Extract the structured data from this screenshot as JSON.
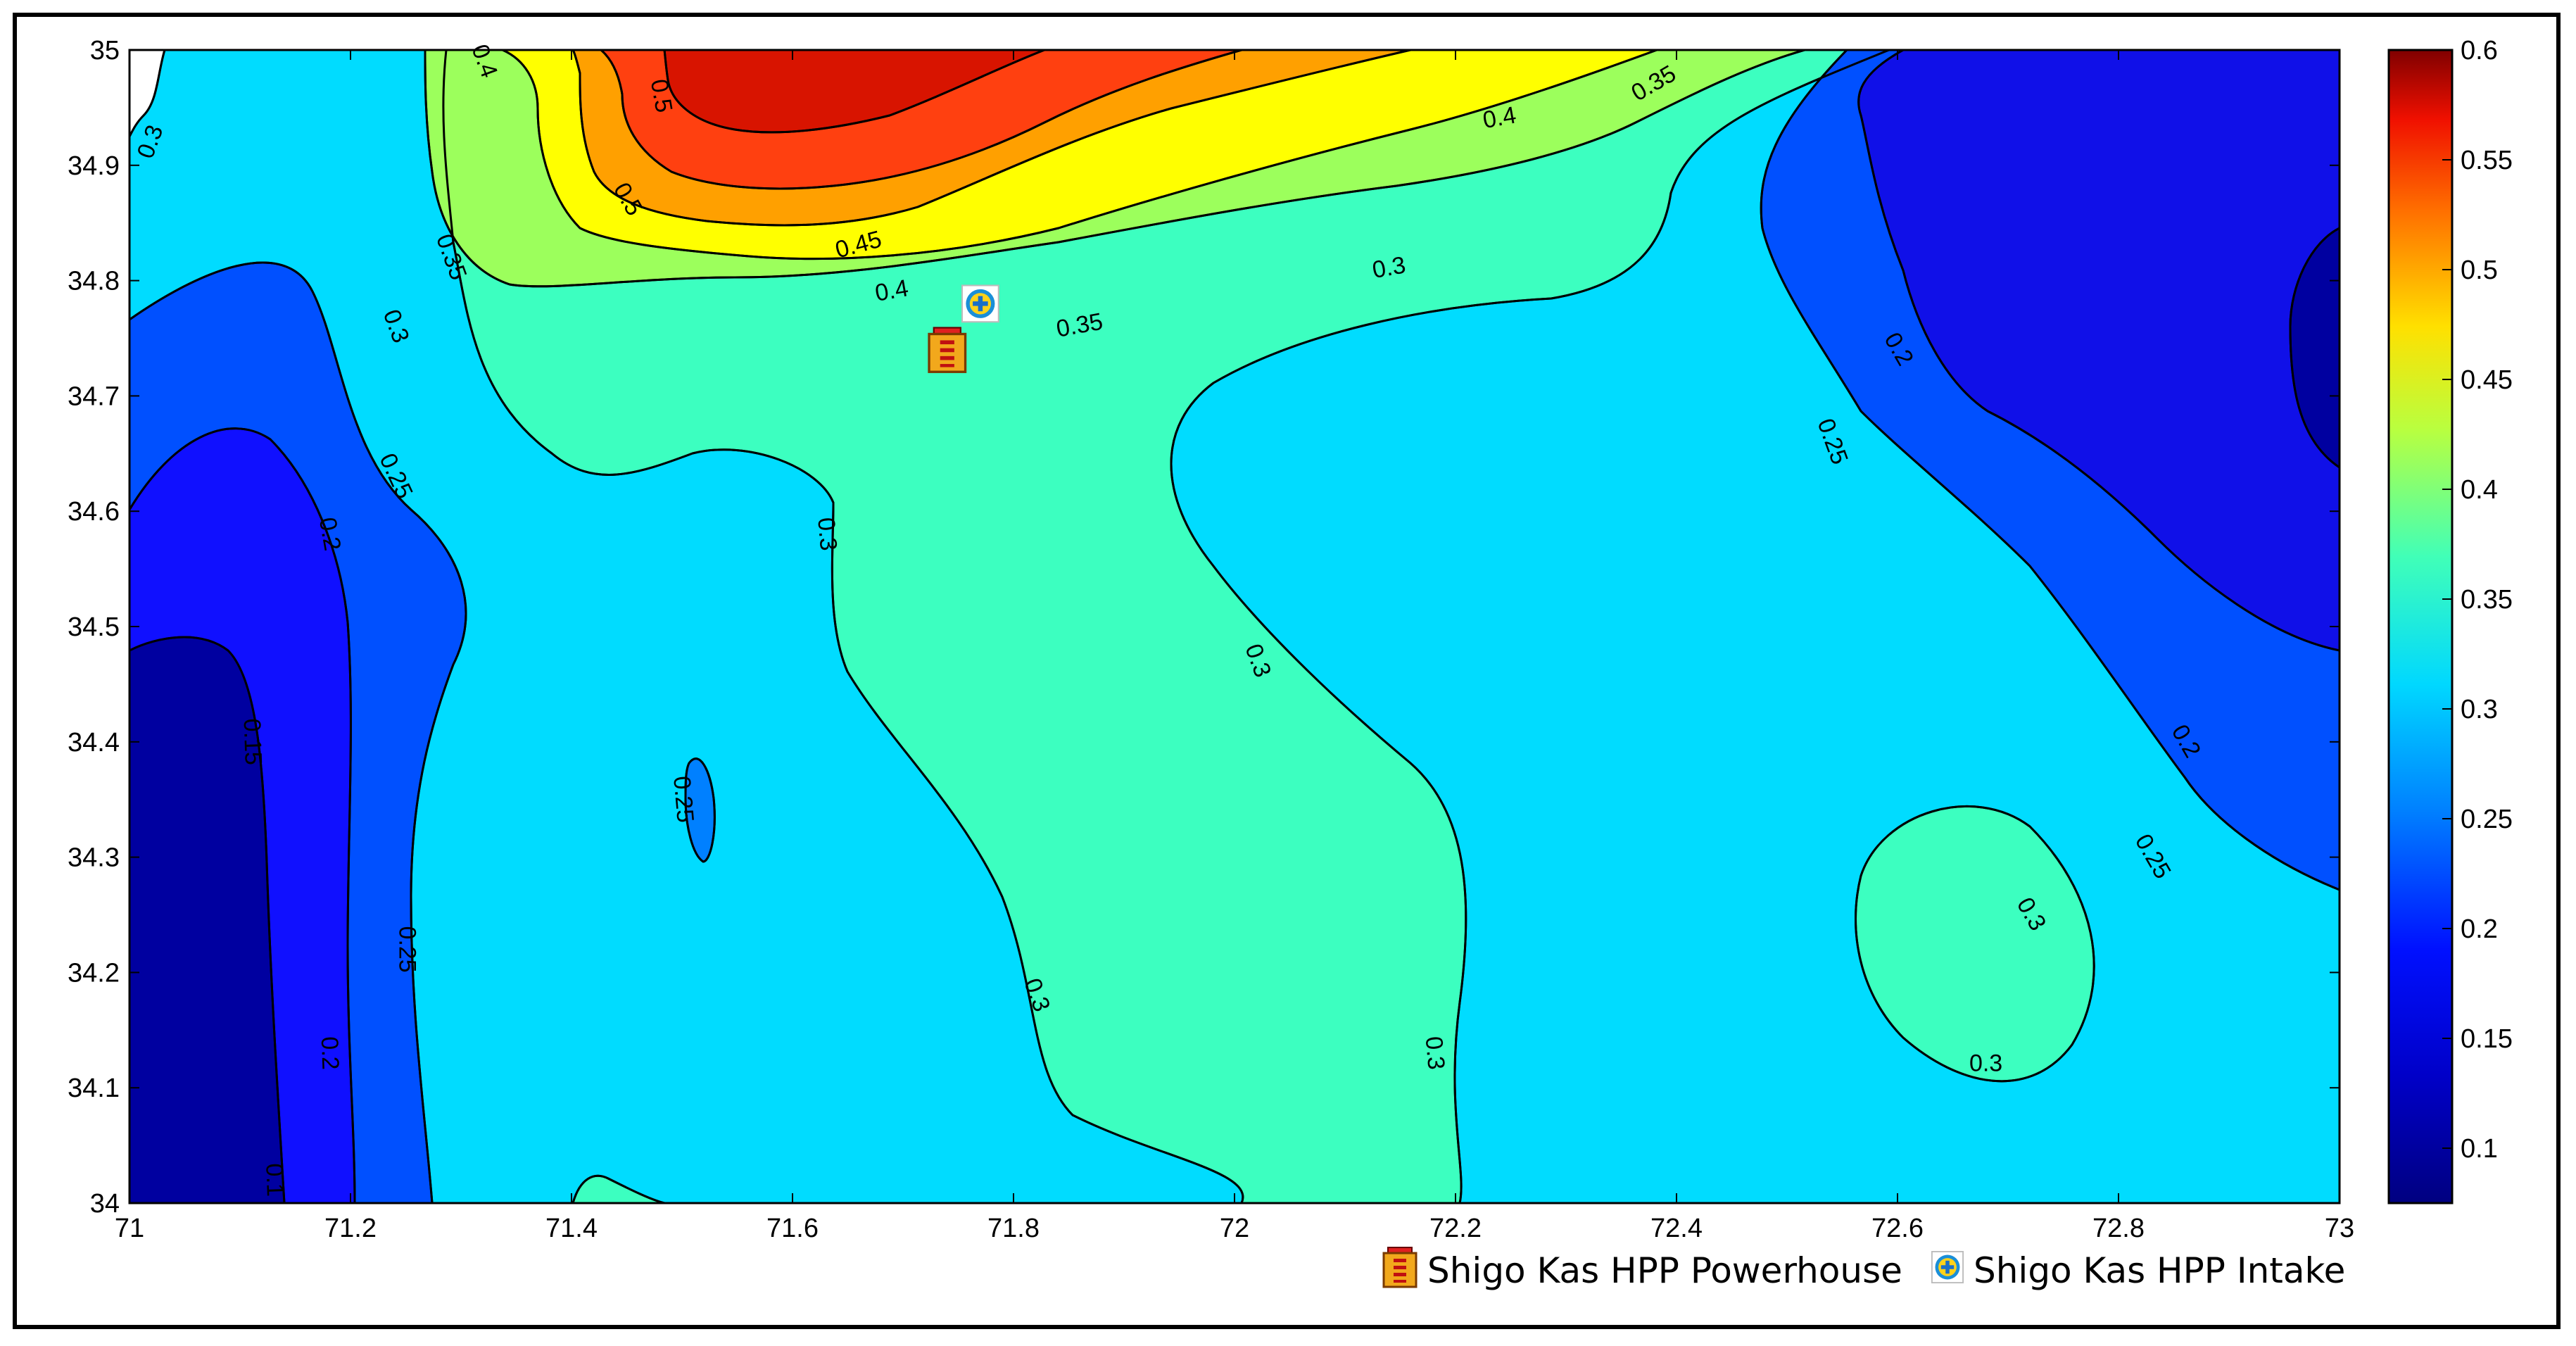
{
  "chart_data": {
    "type": "contour",
    "title": "",
    "xlabel": "",
    "ylabel": "",
    "xlim": [
      71,
      73
    ],
    "ylim": [
      34,
      35
    ],
    "x_ticks": [
      "71",
      "71.2",
      "71.4",
      "71.6",
      "71.8",
      "72",
      "72.2",
      "72.4",
      "72.6",
      "72.8",
      "73"
    ],
    "y_ticks": [
      "34",
      "34.1",
      "34.2",
      "34.3",
      "34.4",
      "34.5",
      "34.6",
      "34.7",
      "34.8",
      "34.9",
      "35"
    ],
    "colorbar": {
      "range": [
        0.075,
        0.6
      ],
      "ticks": [
        "0.1",
        "0.15",
        "0.2",
        "0.25",
        "0.3",
        "0.35",
        "0.4",
        "0.45",
        "0.5",
        "0.55",
        "0.6"
      ],
      "colormap": "jet"
    },
    "levels": [
      0.1,
      0.15,
      0.2,
      0.25,
      0.3,
      0.35,
      0.4,
      0.45,
      0.5,
      0.55
    ],
    "contour_labels": [
      {
        "text": "0.3",
        "x": 71.02,
        "y": 34.92,
        "angle": -70
      },
      {
        "text": "0.35",
        "x": 71.29,
        "y": 34.82,
        "angle": 70
      },
      {
        "text": "0.3",
        "x": 71.24,
        "y": 34.76,
        "angle": 70
      },
      {
        "text": "0.25",
        "x": 71.24,
        "y": 34.63,
        "angle": 65
      },
      {
        "text": "0.2",
        "x": 71.18,
        "y": 34.58,
        "angle": 80
      },
      {
        "text": "0.15",
        "x": 71.11,
        "y": 34.4,
        "angle": 88
      },
      {
        "text": "0.25",
        "x": 71.25,
        "y": 34.22,
        "angle": 90
      },
      {
        "text": "0.2",
        "x": 71.18,
        "y": 34.13,
        "angle": 88
      },
      {
        "text": "0.1",
        "x": 71.13,
        "y": 34.02,
        "angle": 88
      },
      {
        "text": "0.5",
        "x": 71.48,
        "y": 34.96,
        "angle": 80
      },
      {
        "text": "0.5",
        "x": 71.45,
        "y": 34.87,
        "angle": 60
      },
      {
        "text": "0.4",
        "x": 71.32,
        "y": 34.99,
        "angle": 70
      },
      {
        "text": "0.45",
        "x": 71.66,
        "y": 34.83,
        "angle": -15
      },
      {
        "text": "0.4",
        "x": 71.69,
        "y": 34.79,
        "angle": -10
      },
      {
        "text": "0.35",
        "x": 71.86,
        "y": 34.76,
        "angle": -10
      },
      {
        "text": "0.4",
        "x": 72.24,
        "y": 34.94,
        "angle": -10
      },
      {
        "text": "0.35",
        "x": 72.38,
        "y": 34.97,
        "angle": -30
      },
      {
        "text": "0.3",
        "x": 72.14,
        "y": 34.81,
        "angle": -10
      },
      {
        "text": "0.3",
        "x": 71.63,
        "y": 34.58,
        "angle": 85
      },
      {
        "text": "0.25",
        "x": 71.5,
        "y": 34.35,
        "angle": 85
      },
      {
        "text": "0.3",
        "x": 72.02,
        "y": 34.47,
        "angle": 70
      },
      {
        "text": "0.3",
        "x": 71.82,
        "y": 34.18,
        "angle": 70
      },
      {
        "text": "0.3",
        "x": 72.18,
        "y": 34.13,
        "angle": 85
      },
      {
        "text": "0.2",
        "x": 72.6,
        "y": 34.74,
        "angle": 60
      },
      {
        "text": "0.25",
        "x": 72.54,
        "y": 34.66,
        "angle": 70
      },
      {
        "text": "0.2",
        "x": 72.86,
        "y": 34.4,
        "angle": 60
      },
      {
        "text": "0.25",
        "x": 72.83,
        "y": 34.3,
        "angle": 60
      },
      {
        "text": "0.3",
        "x": 72.72,
        "y": 34.25,
        "angle": 60
      },
      {
        "text": "0.3",
        "x": 72.68,
        "y": 34.12,
        "angle": 0
      }
    ],
    "markers": [
      {
        "name": "Shigo Kas HPP Powerhouse",
        "x": 71.74,
        "y": 34.74,
        "icon": "powerhouse-icon"
      },
      {
        "name": "Shigo Kas HPP Intake",
        "x": 71.77,
        "y": 34.78,
        "icon": "intake-icon"
      }
    ],
    "legend": {
      "placement": "bottom-right",
      "items": [
        {
          "label": "Shigo Kas HPP Powerhouse",
          "icon": "powerhouse-icon"
        },
        {
          "label": "Shigo Kas HPP Intake",
          "icon": "intake-icon"
        }
      ]
    }
  }
}
